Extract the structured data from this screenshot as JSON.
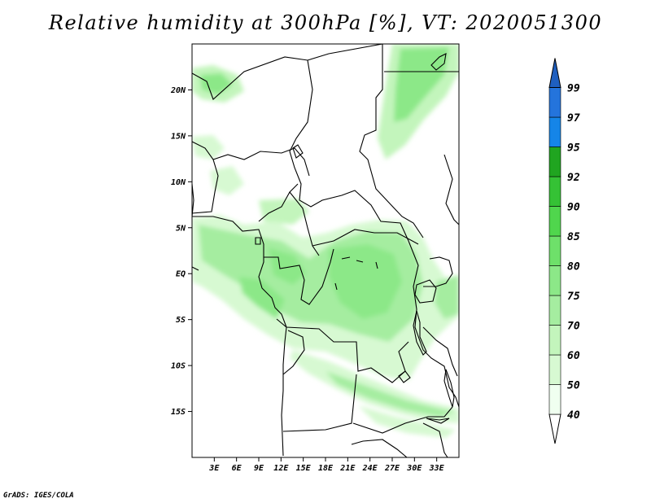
{
  "title": "Relative humidity at 300hPa [%], VT: 2020051300",
  "credit": "GrADS: IGES/COLA",
  "map": {
    "lon_range": [
      0,
      36
    ],
    "lat_range": [
      -20,
      25
    ],
    "lat_ticks": [
      {
        "value": 20,
        "label": "20N"
      },
      {
        "value": 15,
        "label": "15N"
      },
      {
        "value": 10,
        "label": "10N"
      },
      {
        "value": 5,
        "label": "5N"
      },
      {
        "value": 0,
        "label": "EQ"
      },
      {
        "value": -5,
        "label": "5S"
      },
      {
        "value": -10,
        "label": "10S"
      },
      {
        "value": -15,
        "label": "15S"
      }
    ],
    "lon_ticks": [
      {
        "value": 3,
        "label": "3E"
      },
      {
        "value": 6,
        "label": "6E"
      },
      {
        "value": 9,
        "label": "9E"
      },
      {
        "value": 12,
        "label": "12E"
      },
      {
        "value": 15,
        "label": "15E"
      },
      {
        "value": 18,
        "label": "18E"
      },
      {
        "value": 21,
        "label": "21E"
      },
      {
        "value": 24,
        "label": "24E"
      },
      {
        "value": 27,
        "label": "27E"
      },
      {
        "value": 30,
        "label": "30E"
      },
      {
        "value": 33,
        "label": "33E"
      }
    ]
  },
  "colorbar": {
    "levels": [
      "40",
      "50",
      "60",
      "70",
      "75",
      "80",
      "85",
      "90",
      "92",
      "95",
      "97",
      "99"
    ],
    "colors": [
      "#f0fff0",
      "#d7f9d2",
      "#c3f5bc",
      "#a5eda0",
      "#8ce888",
      "#6ee06a",
      "#50d64d",
      "#35c235",
      "#20a520",
      "#1585e8",
      "#2474dc",
      "#1f5fbf"
    ]
  }
}
